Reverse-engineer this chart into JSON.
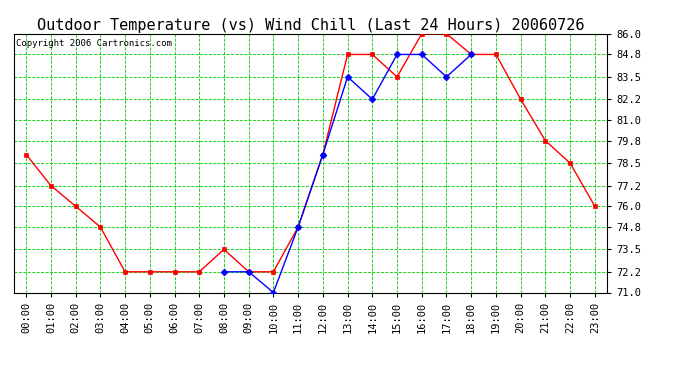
{
  "title": "Outdoor Temperature (vs) Wind Chill (Last 24 Hours) 20060726",
  "copyright_text": "Copyright 2006 Cartronics.com",
  "hours": [
    "00:00",
    "01:00",
    "02:00",
    "03:00",
    "04:00",
    "05:00",
    "06:00",
    "07:00",
    "08:00",
    "09:00",
    "10:00",
    "11:00",
    "12:00",
    "13:00",
    "14:00",
    "15:00",
    "16:00",
    "17:00",
    "18:00",
    "19:00",
    "20:00",
    "21:00",
    "22:00",
    "23:00"
  ],
  "temp": [
    79.0,
    77.2,
    76.0,
    74.8,
    72.2,
    72.2,
    72.2,
    72.2,
    73.5,
    72.2,
    72.2,
    74.8,
    79.0,
    84.8,
    84.8,
    83.5,
    86.0,
    86.0,
    84.8,
    84.8,
    82.2,
    79.8,
    78.5,
    76.0
  ],
  "wind_chill": [
    null,
    null,
    null,
    null,
    null,
    null,
    null,
    null,
    72.2,
    72.2,
    71.0,
    74.8,
    79.0,
    83.5,
    82.2,
    84.8,
    84.8,
    83.5,
    84.8,
    null,
    null,
    null,
    null,
    null
  ],
  "temp_color": "#ff0000",
  "wind_chill_color": "#0000ff",
  "grid_color": "#00cc00",
  "bg_color": "#ffffff",
  "plot_bg_color": "#ffffff",
  "ylim_min": 71.0,
  "ylim_max": 86.0,
  "yticks": [
    71.0,
    72.2,
    73.5,
    74.8,
    76.0,
    77.2,
    78.5,
    79.8,
    81.0,
    82.2,
    83.5,
    84.8,
    86.0
  ],
  "title_fontsize": 11,
  "copyright_fontsize": 6.5,
  "tick_fontsize": 7.5,
  "marker_size": 3.5
}
